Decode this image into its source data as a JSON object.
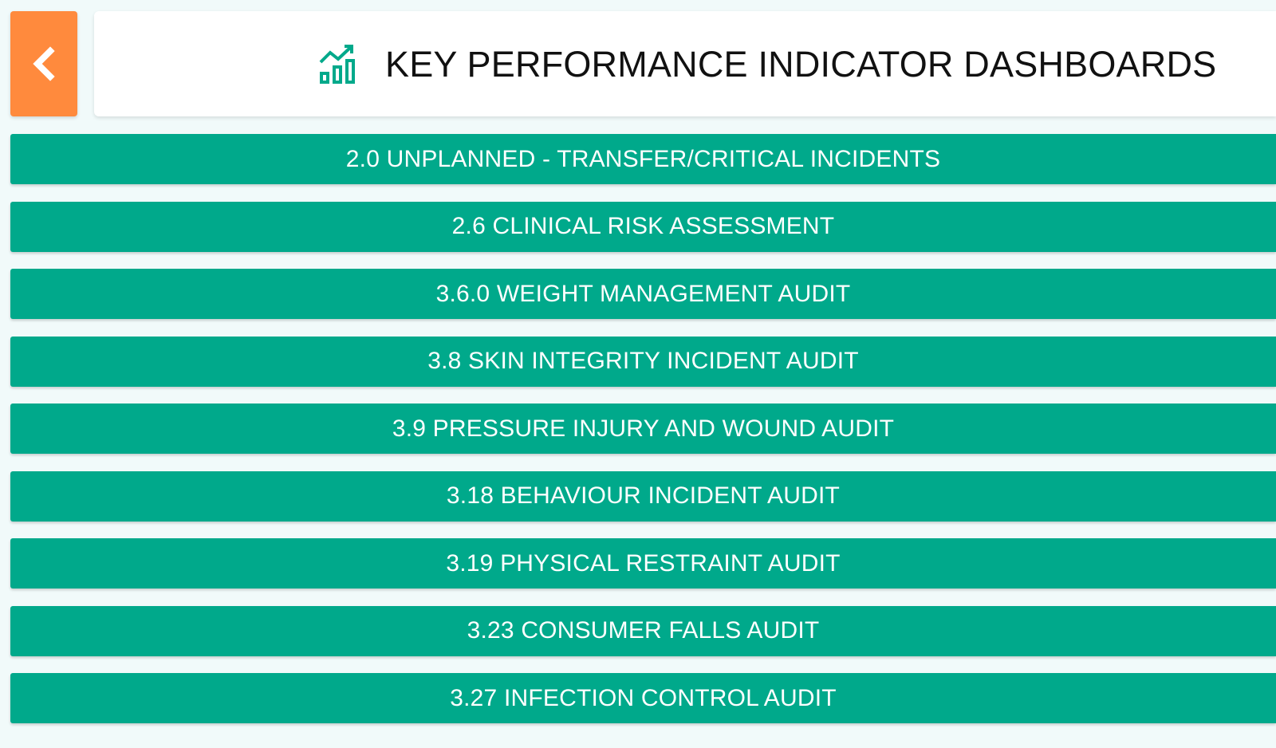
{
  "header": {
    "back_icon": "chevron-left-icon",
    "title_icon": "chart-bar-trend-icon",
    "title": "KEY PERFORMANCE INDICATOR DASHBOARDS"
  },
  "menu": {
    "items": [
      {
        "label": "2.0 UNPLANNED - TRANSFER/CRITICAL INCIDENTS"
      },
      {
        "label": "2.6 CLINICAL RISK ASSESSMENT"
      },
      {
        "label": "3.6.0 WEIGHT MANAGEMENT AUDIT"
      },
      {
        "label": "3.8 SKIN INTEGRITY INCIDENT AUDIT"
      },
      {
        "label": "3.9 PRESSURE INJURY AND WOUND AUDIT"
      },
      {
        "label": "3.18 BEHAVIOUR INCIDENT AUDIT"
      },
      {
        "label": "3.19 PHYSICAL RESTRAINT AUDIT"
      },
      {
        "label": "3.23 CONSUMER FALLS AUDIT"
      },
      {
        "label": "3.27 INFECTION CONTROL AUDIT"
      }
    ]
  },
  "colors": {
    "accent_orange": "#ff8a3d",
    "accent_teal": "#00a98b",
    "background": "#f1fafa"
  }
}
